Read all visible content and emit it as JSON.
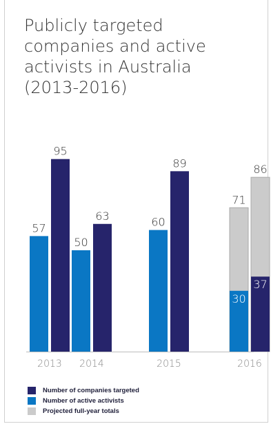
{
  "title": "Publicly targeted\ncompanies and active\nactivists in Australia\n(2013-2016)",
  "chart_data": {
    "type": "bar",
    "categories": [
      "2013",
      "2014",
      "2015",
      "2016"
    ],
    "series": [
      {
        "name": "Number of active activists",
        "values": [
          57,
          50,
          60,
          30
        ],
        "color": "#0a77c4"
      },
      {
        "name": "Number of companies targeted",
        "values": [
          95,
          63,
          89,
          37
        ],
        "color": "#26246b"
      }
    ],
    "projected": {
      "name": "Projected full-year totals",
      "values": [
        null,
        null,
        null,
        [
          71,
          86
        ]
      ],
      "color": "#cbcbcb"
    },
    "ylim": [
      0,
      100
    ],
    "grid": false,
    "legend_position": "bottom-left"
  },
  "legend": [
    {
      "label": "Number of companies targeted",
      "color": "#26246b"
    },
    {
      "label": "Number of active activists",
      "color": "#0a77c4"
    },
    {
      "label": "Projected full-year totals",
      "color": "#cbcbcb"
    }
  ]
}
